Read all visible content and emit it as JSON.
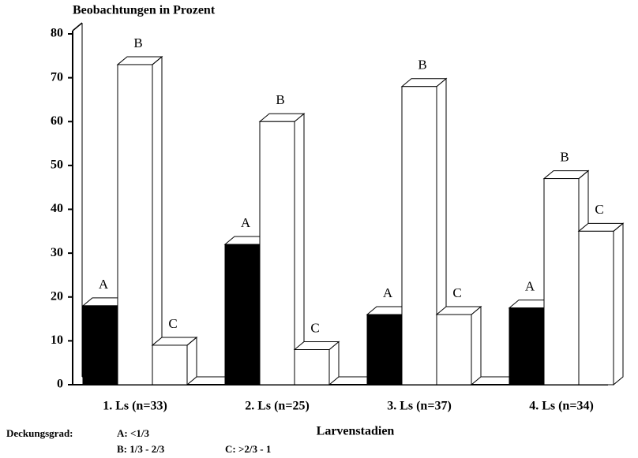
{
  "chart_data": {
    "type": "bar3d",
    "title": "Beobachtungen in Prozent",
    "x_label": "Larvenstadien",
    "categories": [
      "1. Ls (n=33)",
      "2. Ls (n=25)",
      "3. Ls (n=37)",
      "4. Ls (n=34)"
    ],
    "series": [
      {
        "name": "A",
        "color": "#000000",
        "values": [
          18,
          32,
          16,
          17.5
        ]
      },
      {
        "name": "B",
        "color": "#ffffff",
        "values": [
          73,
          60,
          68,
          47
        ]
      },
      {
        "name": "C",
        "color": "#ffffff",
        "values": [
          9,
          8,
          16,
          35
        ]
      }
    ],
    "ylim": [
      0,
      80
    ],
    "yticks": [
      0,
      10,
      20,
      30,
      40,
      50,
      60,
      70,
      80
    ],
    "legend": {
      "title": "Deckungsgrad:",
      "items": [
        "A: <1/3",
        "B: 1/3 - 2/3",
        "C: >2/3 - 1"
      ]
    }
  }
}
